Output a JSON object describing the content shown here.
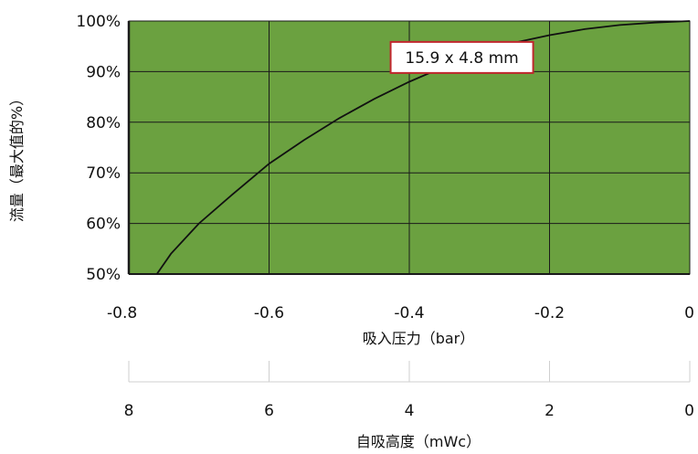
{
  "chart_data": {
    "type": "line",
    "title": "",
    "xlabel": "吸入压力（bar）",
    "ylabel": "流量（最大值的%）",
    "xlim": [
      -0.8,
      0
    ],
    "ylim": [
      50,
      100
    ],
    "grid": true,
    "colors": {
      "plot_background": "#6ba140",
      "grid": "#1a1a1a",
      "line": "#111111",
      "annotation_border": "#c0272d"
    },
    "x_ticks": [
      {
        "value": -0.8,
        "label": "-0.8"
      },
      {
        "value": -0.6,
        "label": "-0.6"
      },
      {
        "value": -0.4,
        "label": "-0.4"
      },
      {
        "value": -0.2,
        "label": "-0.2"
      },
      {
        "value": 0,
        "label": "0"
      }
    ],
    "y_ticks": [
      {
        "value": 50,
        "label": "50%"
      },
      {
        "value": 60,
        "label": "60%"
      },
      {
        "value": 70,
        "label": "70%"
      },
      {
        "value": 80,
        "label": "80%"
      },
      {
        "value": 90,
        "label": "90%"
      },
      {
        "value": 100,
        "label": "100%"
      }
    ],
    "series": [
      {
        "name": "15.9 x 4.8 mm",
        "x": [
          -0.76,
          -0.74,
          -0.7,
          -0.65,
          -0.6,
          -0.55,
          -0.5,
          -0.45,
          -0.4,
          -0.35,
          -0.3,
          -0.25,
          -0.2,
          -0.15,
          -0.1,
          -0.05,
          0
        ],
        "y": [
          50,
          54,
          60,
          66,
          71.8,
          76.5,
          80.8,
          84.6,
          88,
          91,
          93.6,
          95.7,
          97.2,
          98.4,
          99.2,
          99.7,
          100
        ]
      }
    ],
    "annotations": [
      {
        "text": "15.9 x 4.8 mm",
        "x": -0.325,
        "y": 92.8
      }
    ],
    "secondary_axis": {
      "label": "自吸高度（mWc）",
      "ticks": [
        {
          "position": -0.8,
          "label": "8"
        },
        {
          "position": -0.6,
          "label": "6"
        },
        {
          "position": -0.4,
          "label": "4"
        },
        {
          "position": -0.2,
          "label": "2"
        },
        {
          "position": 0,
          "label": "0"
        }
      ]
    }
  }
}
